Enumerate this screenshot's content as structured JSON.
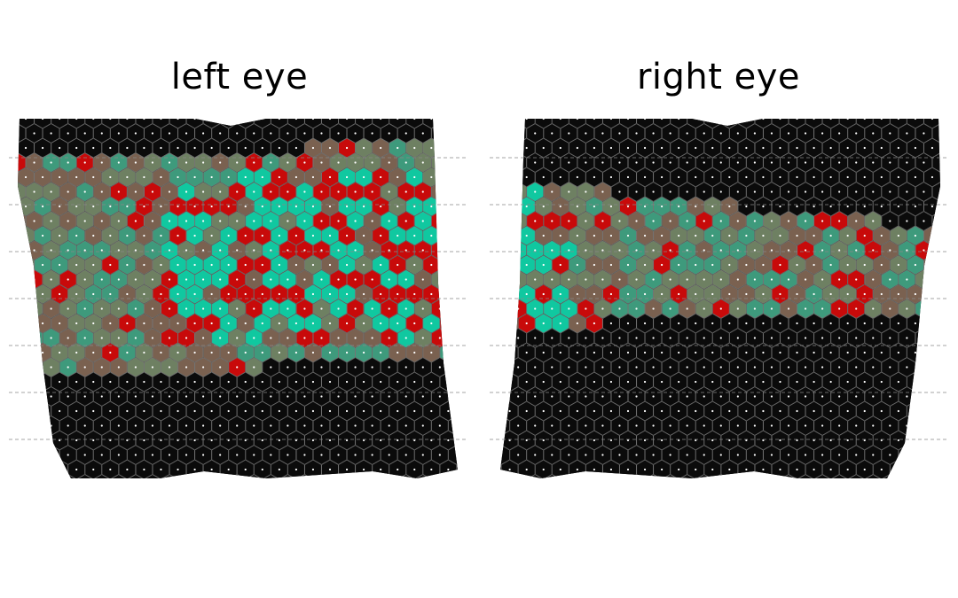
{
  "panels": [
    {
      "id": "left",
      "title": "left eye"
    },
    {
      "id": "right",
      "title": "right eye"
    }
  ],
  "colors": {
    "background": "#ffffff",
    "cell_dark": "#0b0b0b",
    "cell_edge": "#7a7a7a",
    "red": "#c80a0a",
    "teal": "#10c8a0",
    "olive": "#6e8062",
    "brown": "#7a6150",
    "center_dot": "#ffffff",
    "guide_line": "#888888"
  },
  "legend": "none",
  "grid": "dashed horizontal guide lines"
}
